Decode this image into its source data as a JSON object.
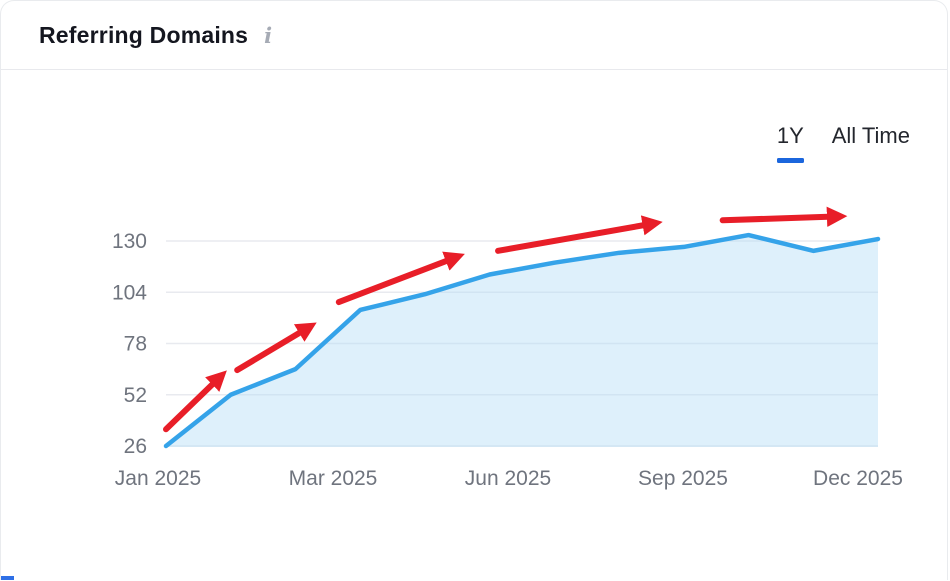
{
  "header": {
    "title": "Referring Domains",
    "info_icon": "i"
  },
  "tabs": [
    {
      "label": "1Y",
      "active": true
    },
    {
      "label": "All Time",
      "active": false
    }
  ],
  "chart_data": {
    "type": "area",
    "title": "Referring Domains",
    "x": [
      "Jan 2025",
      "Feb 2025",
      "Mar 2025",
      "Apr 2025",
      "May 2025",
      "Jun 2025",
      "Jul 2025",
      "Aug 2025",
      "Sep 2025",
      "Oct 2025",
      "Nov 2025",
      "Dec 2025"
    ],
    "values": [
      26,
      52,
      65,
      95,
      103,
      113,
      119,
      124,
      127,
      133,
      125,
      131
    ],
    "y_ticks": [
      26,
      52,
      78,
      104,
      130
    ],
    "x_tick_labels": [
      "Jan 2025",
      "Mar 2025",
      "Jun 2025",
      "Sep 2025",
      "Dec 2025"
    ],
    "ylim": [
      26,
      145
    ],
    "grid": true,
    "legend": false,
    "line_color": "#35a3e9",
    "fill_color": "#b5ddf6",
    "fill_opacity": 0.45,
    "annotations": {
      "description": "red upward trend arrows drawn over the line",
      "color": "#e81e28",
      "arrows": [
        {
          "from": [
            0.0,
            34.5
          ],
          "to": [
            0.85,
            61.5
          ]
        },
        {
          "from": [
            1.1,
            64.5
          ],
          "to": [
            2.22,
            86.5
          ]
        },
        {
          "from": [
            2.67,
            99.0
          ],
          "to": [
            4.5,
            122.0
          ]
        },
        {
          "from": [
            5.13,
            125.0
          ],
          "to": [
            7.55,
            139.0
          ]
        },
        {
          "from": [
            8.6,
            140.5
          ],
          "to": [
            10.4,
            142.5
          ]
        }
      ]
    }
  },
  "colors": {
    "accent_blue": "#1b66dd",
    "grid": "#e8eaef",
    "axis_text": "#6f747e",
    "title_text": "#14161f",
    "arrow_red": "#e81e28"
  }
}
